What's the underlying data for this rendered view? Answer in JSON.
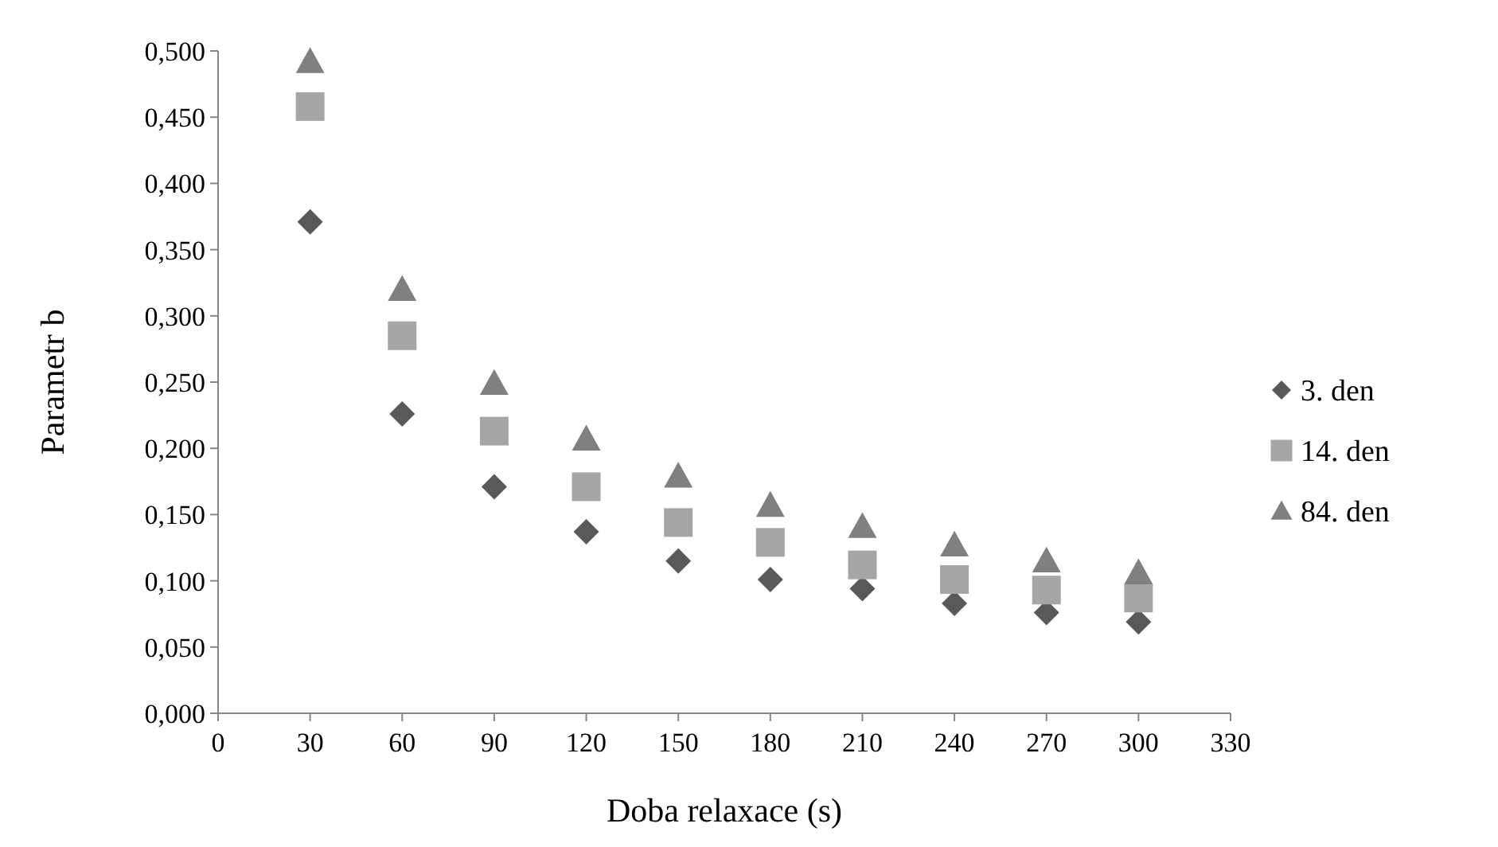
{
  "chart_data": {
    "type": "scatter",
    "xlabel": "Doba relaxace (s)",
    "ylabel": "Parametr b",
    "x": [
      30,
      60,
      90,
      120,
      150,
      180,
      210,
      240,
      270,
      300
    ],
    "series": [
      {
        "name": "3. den",
        "color": "#595959",
        "marker": "diamond",
        "values": [
          0.371,
          0.226,
          0.171,
          0.137,
          0.115,
          0.101,
          0.094,
          0.083,
          0.076,
          0.069
        ]
      },
      {
        "name": "14. den",
        "color": "#a6a6a6",
        "marker": "square",
        "values": [
          0.458,
          0.285,
          0.213,
          0.171,
          0.144,
          0.129,
          0.112,
          0.101,
          0.093,
          0.087
        ]
      },
      {
        "name": "84. den",
        "color": "#808080",
        "marker": "triangle",
        "values": [
          0.492,
          0.32,
          0.249,
          0.207,
          0.179,
          0.157,
          0.141,
          0.127,
          0.115,
          0.106
        ]
      }
    ],
    "xlim": [
      0,
      330
    ],
    "xticks": [
      0,
      30,
      60,
      90,
      120,
      150,
      180,
      210,
      240,
      270,
      300,
      330
    ],
    "ylim": [
      0,
      0.5
    ],
    "yticks": [
      {
        "value": 0,
        "label": "0,000"
      },
      {
        "value": 0.05,
        "label": "0,050"
      },
      {
        "value": 0.1,
        "label": "0,100"
      },
      {
        "value": 0.15,
        "label": "0,150"
      },
      {
        "value": 0.2,
        "label": "0,200"
      },
      {
        "value": 0.25,
        "label": "0,250"
      },
      {
        "value": 0.3,
        "label": "0,300"
      },
      {
        "value": 0.35,
        "label": "0,350"
      },
      {
        "value": 0.4,
        "label": "0,400"
      },
      {
        "value": 0.45,
        "label": "0,450"
      },
      {
        "value": 0.5,
        "label": "0,500"
      }
    ],
    "grid": false,
    "legend": "right"
  }
}
